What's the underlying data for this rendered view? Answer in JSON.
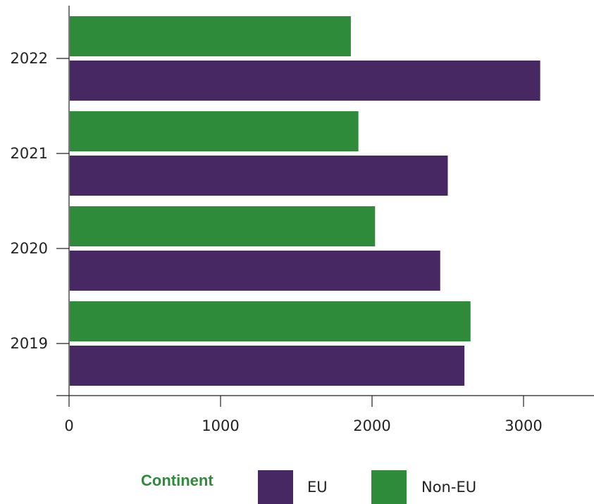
{
  "chart_data": {
    "type": "bar",
    "orientation": "horizontal",
    "categories": [
      "2019",
      "2020",
      "2021",
      "2022"
    ],
    "series": [
      {
        "name": "EU",
        "color": "#482863",
        "values": [
          2610,
          2450,
          2500,
          3110
        ]
      },
      {
        "name": "Non-EU",
        "color": "#2e8b3a",
        "values": [
          2650,
          2020,
          1910,
          1860
        ]
      }
    ],
    "xlim": [
      0,
      3450
    ],
    "xticks": [
      0,
      1000,
      2000,
      3000
    ],
    "xtick_labels": [
      "0",
      "1000",
      "2000",
      "3000"
    ],
    "xlabel": "",
    "ylabel": "",
    "grid": false,
    "legend": {
      "title": "Continent",
      "placement": "bottom"
    }
  }
}
